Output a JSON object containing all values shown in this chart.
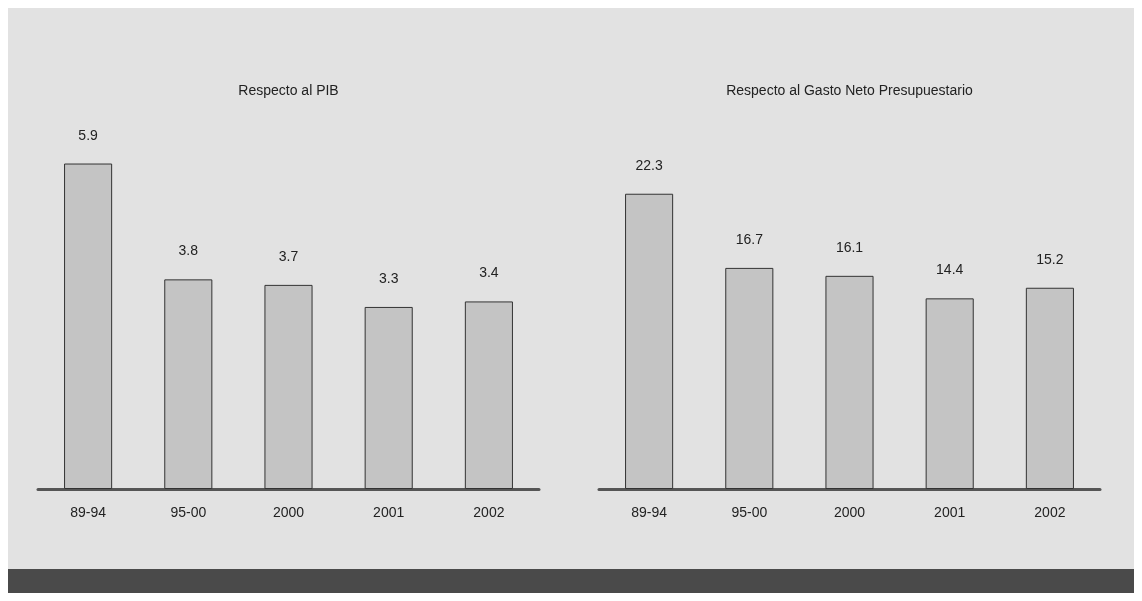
{
  "chart_data": [
    {
      "type": "bar",
      "title": "Respecto al PIB",
      "categories": [
        "89-94",
        "95-00",
        "2000",
        "2001",
        "2002"
      ],
      "values": [
        5.9,
        3.8,
        3.7,
        3.3,
        3.4
      ],
      "color": "#c4c4c4",
      "data_labels": true
    },
    {
      "type": "bar",
      "title": "Respecto al Gasto Neto Presupuestario",
      "categories": [
        "89-94",
        "95-00",
        "2000",
        "2001",
        "2002"
      ],
      "values": [
        22.3,
        16.7,
        16.1,
        14.4,
        15.2
      ],
      "color": "#c4c4c4",
      "data_labels": true
    }
  ]
}
